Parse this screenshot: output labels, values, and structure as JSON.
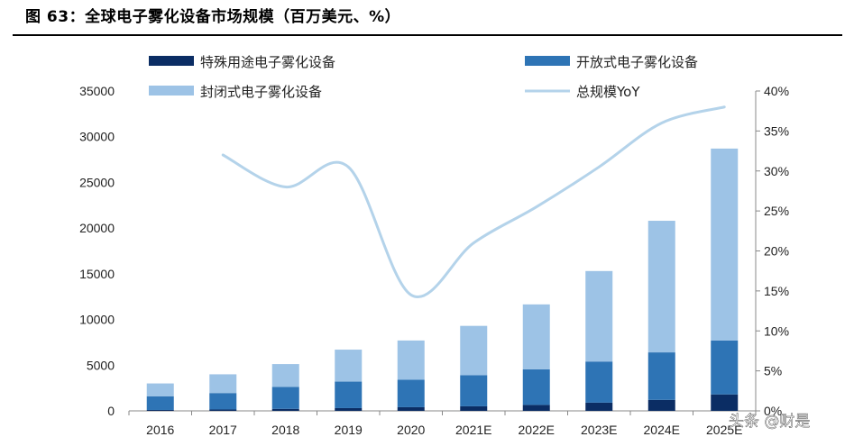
{
  "title": "图 63：全球电子雾化设备市场规模（百万美元、%）",
  "watermark": "头条 @财是",
  "chart_data": {
    "type": "bar",
    "stacked": true,
    "categories": [
      "2016",
      "2017",
      "2018",
      "2019",
      "2020",
      "2021E",
      "2022E",
      "2023E",
      "2024E",
      "2025E"
    ],
    "series": [
      {
        "name": "特殊用途电子雾化设备",
        "color": "#0b2d64",
        "values": [
          100,
          150,
          220,
          300,
          400,
          500,
          650,
          900,
          1200,
          1800
        ]
      },
      {
        "name": "开放式电子雾化设备",
        "color": "#2e74b5",
        "values": [
          1500,
          1800,
          2400,
          2900,
          3000,
          3400,
          3900,
          4500,
          5200,
          5900
        ]
      },
      {
        "name": "封闭式电子雾化设备",
        "color": "#9dc3e6",
        "values": [
          1400,
          2050,
          2500,
          3500,
          4300,
          5400,
          7100,
          9900,
          14400,
          21000
        ]
      }
    ],
    "line_series": {
      "name": "总规模YoY",
      "color": "#b4d3ea",
      "axis": "right",
      "values": [
        null,
        32,
        28,
        30.5,
        14.5,
        21,
        25.5,
        30.5,
        36,
        38
      ]
    },
    "y_left": {
      "min": 0,
      "max": 35000,
      "step": 5000
    },
    "y_right": {
      "min": 0,
      "max": 40,
      "step": 5,
      "unit": "%"
    },
    "grid": false,
    "legend_position": "top"
  }
}
